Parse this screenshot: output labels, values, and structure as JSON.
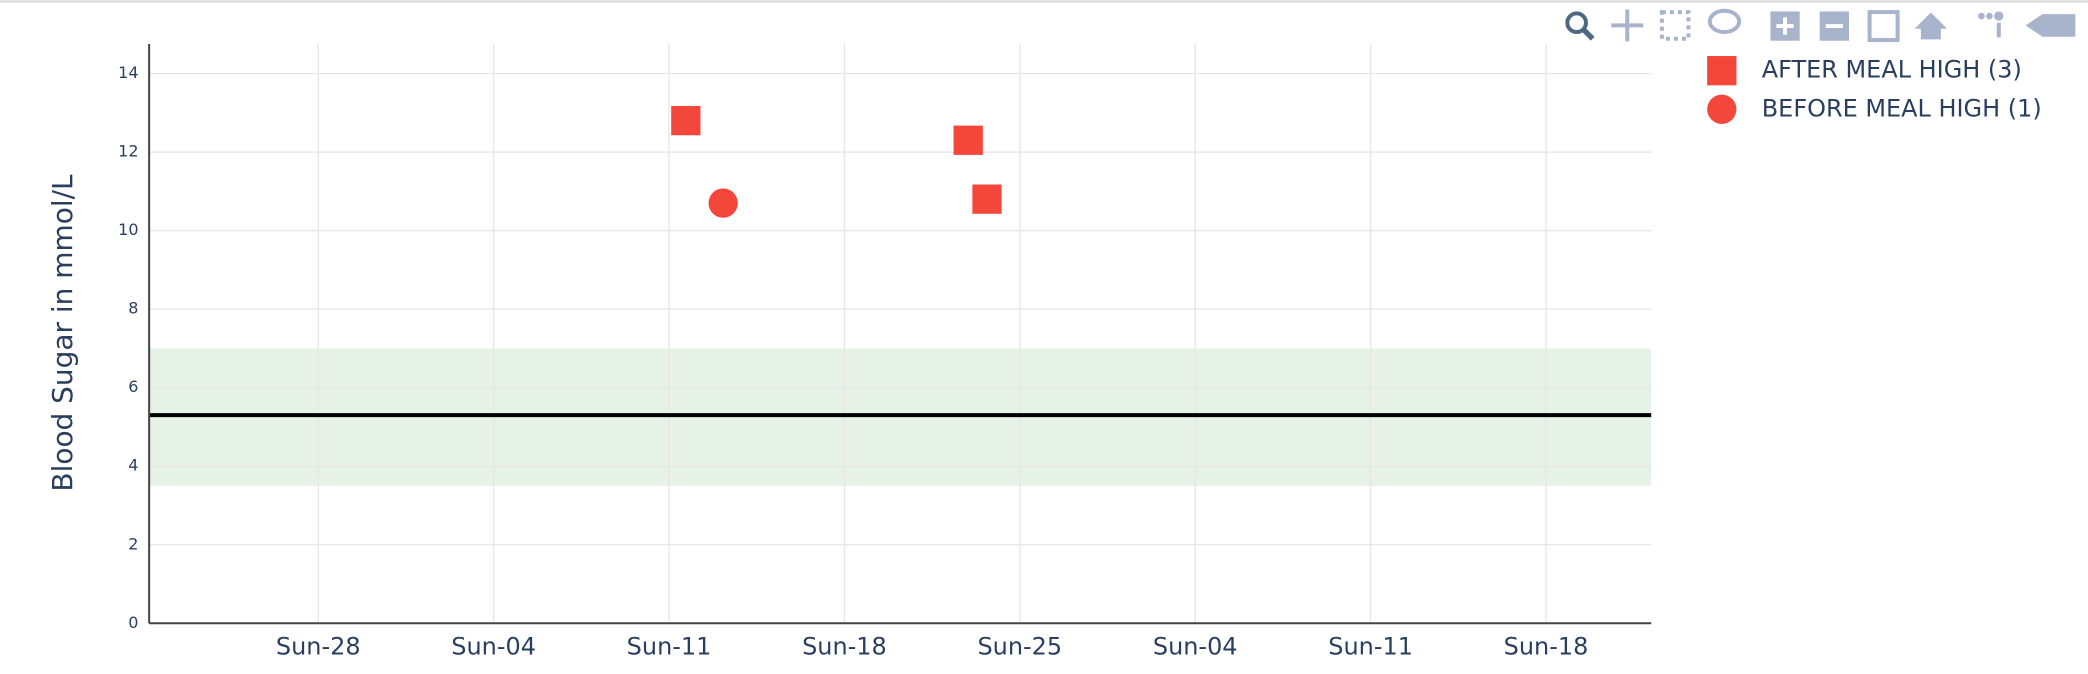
{
  "chart_data": {
    "type": "scatter",
    "y_axis_label": "Blood Sugar in mmol/L",
    "xlim": [
      -6.75,
      53.2
    ],
    "xticks": [
      {
        "value": 0,
        "label": "Sun-28"
      },
      {
        "value": 7,
        "label": "Sun-04"
      },
      {
        "value": 14,
        "label": "Sun-11"
      },
      {
        "value": 21,
        "label": "Sun-18"
      },
      {
        "value": 28,
        "label": "Sun-25"
      },
      {
        "value": 35,
        "label": "Sun-04"
      },
      {
        "value": 42,
        "label": "Sun-11"
      },
      {
        "value": 49,
        "label": "Sun-18"
      }
    ],
    "ylim": [
      0,
      14.75
    ],
    "yticks": [
      0,
      2,
      4,
      6,
      8,
      10,
      12,
      14
    ],
    "grid": true,
    "target_range": [
      3.5,
      7
    ],
    "target_color": "#e6f2e6",
    "reference_line": 5.3,
    "legend_position": "top-right",
    "series": [
      {
        "name": "AFTER MEAL HIGH (3)",
        "color": "#f4473b",
        "marker": "square",
        "x": [
          14.67,
          25.94,
          26.69
        ],
        "values": [
          12.8,
          12.3,
          10.8
        ]
      },
      {
        "name": "BEFORE MEAL HIGH (1)",
        "color": "#f4473b",
        "marker": "circle",
        "x": [
          16.16
        ],
        "values": [
          10.7
        ]
      }
    ]
  }
}
